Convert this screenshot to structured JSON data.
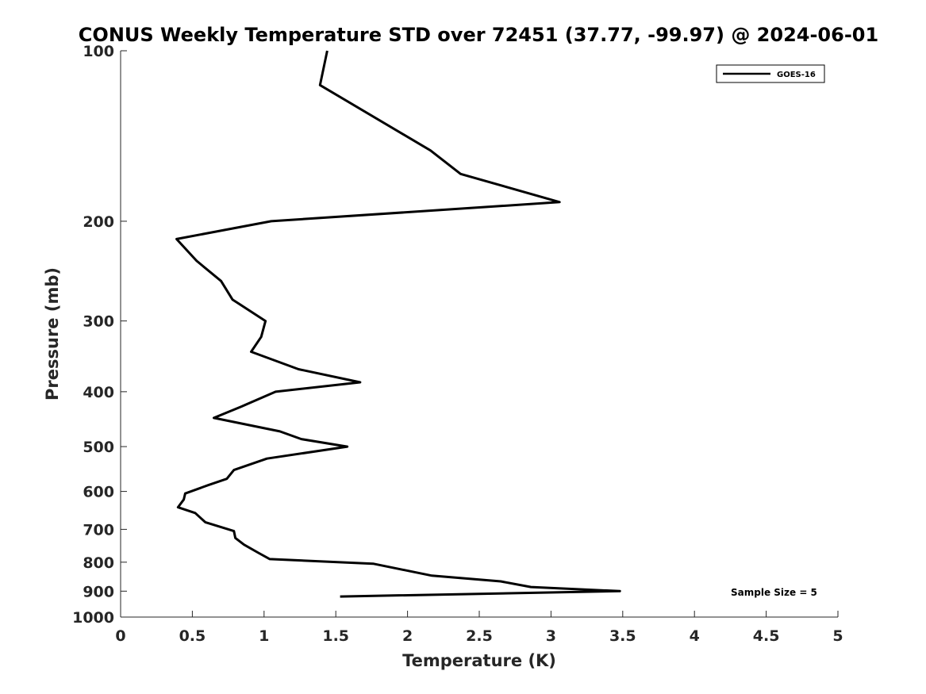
{
  "chart_data": {
    "type": "line",
    "title": "CONUS Weekly Temperature STD over 72451 (37.77, -99.97) @ 2024-06-01",
    "xlabel": "Temperature (K)",
    "ylabel": "Pressure (mb)",
    "xlim": [
      0,
      5
    ],
    "ylim": [
      1000,
      100
    ],
    "y_scale": "log",
    "y_reversed": true,
    "x_ticks": [
      0,
      0.5,
      1,
      1.5,
      2,
      2.5,
      3,
      3.5,
      4,
      4.5,
      5
    ],
    "x_tick_labels": [
      "0",
      "0.5",
      "1",
      "1.5",
      "2",
      "2.5",
      "3",
      "3.5",
      "4",
      "4.5",
      "5"
    ],
    "y_ticks": [
      100,
      200,
      300,
      400,
      500,
      600,
      700,
      800,
      900,
      1000
    ],
    "y_tick_labels": [
      "100",
      "200",
      "300",
      "400",
      "500",
      "600",
      "700",
      "800",
      "900",
      "1000"
    ],
    "grid": false,
    "legend": {
      "placement": "top-right",
      "entries": [
        "GOES-16"
      ]
    },
    "annotation": "Sample Size = 5",
    "line_color": "#000000",
    "series": [
      {
        "name": "GOES-16",
        "x": [
          1.44,
          1.39,
          2.16,
          2.37,
          3.06,
          1.05,
          0.39,
          0.53,
          0.7,
          0.78,
          1.01,
          0.98,
          0.91,
          1.24,
          1.67,
          1.08,
          0.84,
          0.65,
          1.11,
          1.26,
          1.58,
          1.02,
          0.79,
          0.74,
          0.61,
          0.45,
          0.44,
          0.4,
          0.52,
          0.59,
          0.79,
          0.8,
          0.86,
          0.96,
          1.04,
          1.76,
          2.17,
          2.65,
          2.86,
          3.48,
          1.53
        ],
        "y": [
          100,
          115,
          150,
          165,
          185,
          200,
          215,
          235,
          255,
          275,
          300,
          320,
          340,
          365,
          385,
          400,
          425,
          445,
          470,
          485,
          500,
          525,
          550,
          570,
          585,
          605,
          620,
          640,
          655,
          680,
          705,
          725,
          745,
          770,
          790,
          805,
          845,
          865,
          885,
          900,
          920
        ]
      }
    ]
  }
}
